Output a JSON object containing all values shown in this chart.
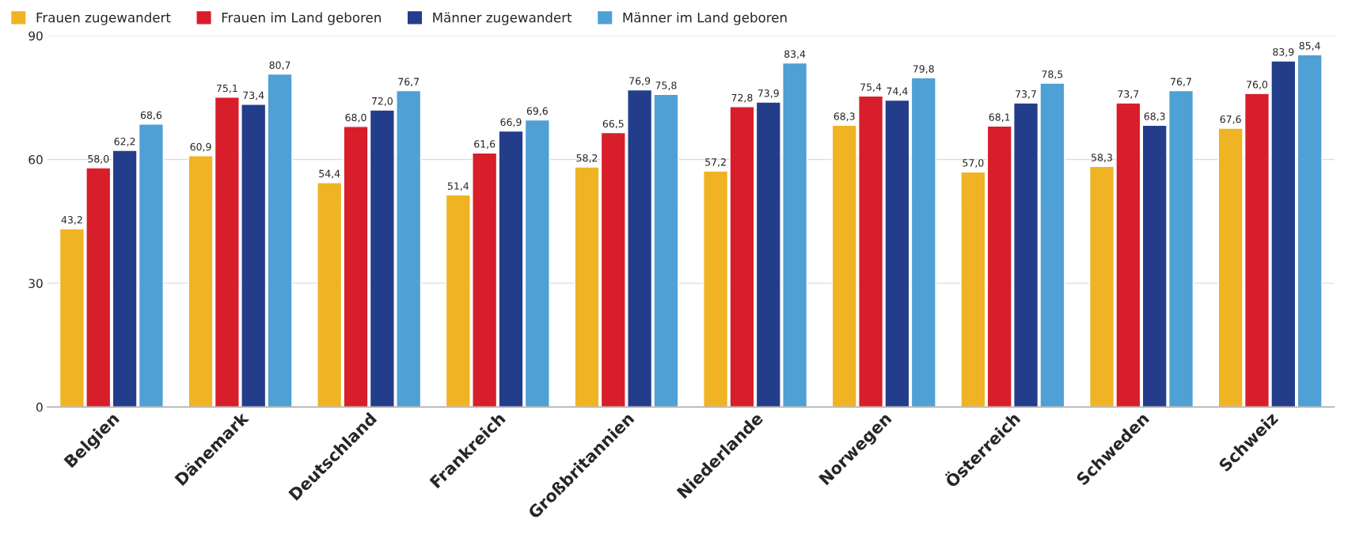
{
  "chart_data": {
    "type": "bar",
    "categories": [
      "Belgien",
      "Dänemark",
      "Deutschland",
      "Frankreich",
      "Großbritannien",
      "Niederlande",
      "Norwegen",
      "Österreich",
      "Schweden",
      "Schweiz"
    ],
    "series": [
      {
        "name": "Frauen zugewandert",
        "color": "#f0b323",
        "values": [
          43.2,
          60.9,
          54.4,
          51.4,
          58.2,
          57.2,
          68.3,
          57.0,
          58.3,
          67.6
        ],
        "value_labels": [
          "43,2",
          "60,9",
          "54,4",
          "51,4",
          "58,2",
          "57,2",
          "68,3",
          "57,0",
          "58,3",
          "67,6"
        ]
      },
      {
        "name": "Frauen im Land geboren",
        "color": "#d81e2a",
        "values": [
          58.0,
          75.1,
          68.0,
          61.6,
          66.5,
          72.8,
          75.4,
          68.1,
          73.7,
          76.0
        ],
        "value_labels": [
          "58,0",
          "75,1",
          "68,0",
          "61,6",
          "66,5",
          "72,8",
          "75,4",
          "68,1",
          "73,7",
          "76,0"
        ]
      },
      {
        "name": "Männer zugewandert",
        "color": "#233d8b",
        "values": [
          62.2,
          73.4,
          72.0,
          66.9,
          76.9,
          73.9,
          74.4,
          73.7,
          68.3,
          83.9
        ],
        "value_labels": [
          "62,2",
          "73,4",
          "72,0",
          "66,9",
          "76,9",
          "73,9",
          "74,4",
          "73,7",
          "68,3",
          "83,9"
        ]
      },
      {
        "name": "Männer im Land geboren",
        "color": "#4fa0d4",
        "values": [
          68.6,
          80.7,
          76.7,
          69.6,
          75.8,
          83.4,
          79.8,
          78.5,
          76.7,
          85.4
        ],
        "value_labels": [
          "68,6",
          "80,7",
          "76,7",
          "69,6",
          "75,8",
          "83,4",
          "79,8",
          "78,5",
          "76,7",
          "85,4"
        ]
      }
    ],
    "ylim": [
      0,
      90
    ],
    "yticks": [
      0,
      30,
      60,
      90
    ],
    "grid": "y",
    "legend": "top left"
  }
}
